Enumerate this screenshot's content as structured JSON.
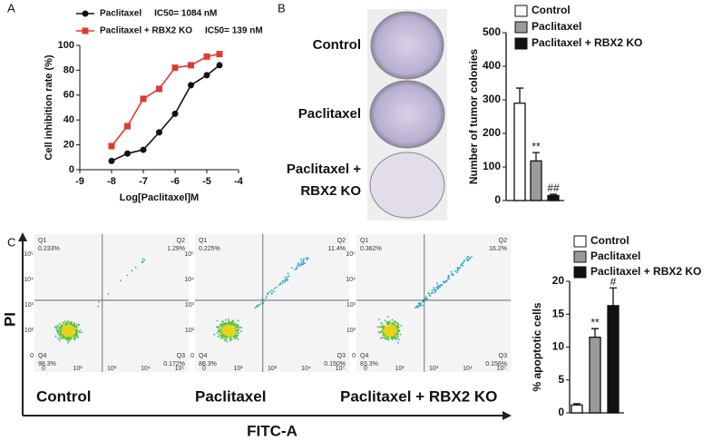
{
  "panel_letters": [
    "A",
    "B",
    "C"
  ],
  "chart_data": [
    {
      "type": "line",
      "xlabel": "Log[Paclitaxel]M",
      "ylabel": "Cell inhibition rate (%)",
      "x": [
        -8,
        -7.5,
        -7,
        -6.5,
        -6,
        -5.5,
        -5,
        -4.6
      ],
      "series": [
        {
          "name": "Paclitaxel",
          "ic50": "IC50= 1084 nM",
          "color": "#111111",
          "marker": "circle",
          "values": [
            7,
            13,
            16,
            30,
            45,
            68,
            76,
            84
          ]
        },
        {
          "name": "Paclitaxel + RBX2 KO",
          "ic50": "IC50= 139 nM",
          "color": "#e03a2e",
          "marker": "square",
          "values": [
            19,
            35,
            57,
            65,
            82,
            84,
            91,
            93
          ]
        }
      ],
      "xlim": [
        -9,
        -4
      ],
      "xticks": [
        -9,
        -8,
        -7,
        -6,
        -5,
        -4
      ],
      "ylim": [
        0,
        100
      ],
      "yticks": [
        0,
        20,
        40,
        60,
        80,
        100
      ]
    },
    {
      "type": "bar",
      "ylabel": "Number of tumor colonies",
      "categories": [
        "Control",
        "Paclitaxel",
        "Paclitaxel + RBX2 KO"
      ],
      "values": [
        290,
        118,
        15
      ],
      "errors": [
        45,
        25,
        4
      ],
      "colors": [
        "#ffffff",
        "#9a9a9a",
        "#111111"
      ],
      "annotations": [
        null,
        "**",
        "##"
      ],
      "ylim": [
        0,
        500
      ],
      "yticks": [
        0,
        100,
        200,
        300,
        400,
        500
      ]
    },
    {
      "type": "bar",
      "ylabel": "% apoptotic cells",
      "categories": [
        "Control",
        "Paclitaxel",
        "Paclitaxel + RBX2 KO"
      ],
      "values": [
        1.2,
        11.5,
        16.3
      ],
      "errors": [
        0.2,
        1.3,
        2.7
      ],
      "colors": [
        "#ffffff",
        "#9a9a9a",
        "#111111"
      ],
      "annotations": [
        null,
        "**",
        "#"
      ],
      "ylim": [
        0,
        20
      ],
      "yticks": [
        0,
        5,
        10,
        15,
        20
      ]
    }
  ],
  "plates": {
    "labels": [
      "Control",
      "Paclitaxel",
      "Paclitaxel +\nRBX2 KO"
    ]
  },
  "flow_cytometry": {
    "y_label": "PI",
    "x_label": "FITC-A",
    "x_ticks": [
      "0",
      "10²",
      "10³",
      "10⁴",
      "10⁵"
    ],
    "y_ticks": [
      "10⁵",
      "10⁴",
      "10³",
      "10²",
      "0"
    ],
    "plots": [
      {
        "label": "Control",
        "quadrants": [
          {
            "name": "Q1",
            "percent": "0.233%"
          },
          {
            "name": "Q2",
            "percent": "1.29%"
          },
          {
            "name": "Q3",
            "percent": "0.172%"
          },
          {
            "name": "Q4",
            "percent": "98.3%"
          }
        ]
      },
      {
        "label": "Paclitaxel",
        "quadrants": [
          {
            "name": "Q1",
            "percent": "0.225%"
          },
          {
            "name": "Q2",
            "percent": "11.4%"
          },
          {
            "name": "Q3",
            "percent": "0.150%"
          },
          {
            "name": "Q4",
            "percent": "88.3%"
          }
        ]
      },
      {
        "label": "Paclitaxel + RBX2 KO",
        "quadrants": [
          {
            "name": "Q1",
            "percent": "0.362%"
          },
          {
            "name": "Q2",
            "percent": "16.2%"
          },
          {
            "name": "Q3",
            "percent": "0.156%"
          },
          {
            "name": "Q4",
            "percent": "83.3%"
          }
        ]
      }
    ]
  }
}
